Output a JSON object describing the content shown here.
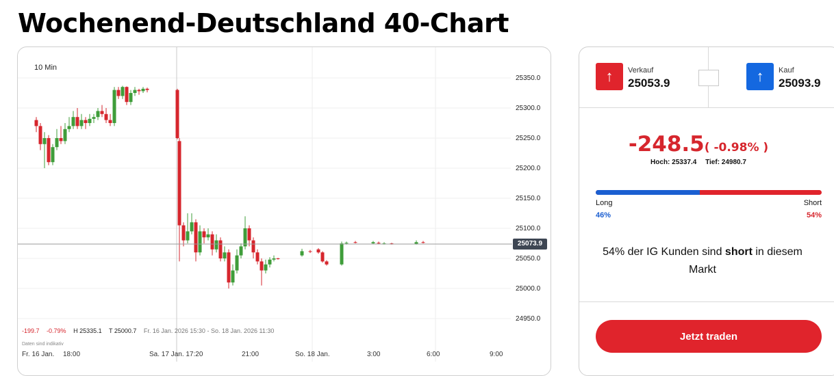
{
  "page": {
    "title": "Wochenend-Deutschland 40-Chart"
  },
  "chart": {
    "timeframe": "10 Min",
    "info": {
      "change": "-199.7",
      "change_pct": "-0.79%",
      "high": "H 25335.1",
      "low": "T 25000.7",
      "range": "Fr. 16 Jan. 2026 15:30 - So. 18 Jan. 2026 11:30"
    },
    "disclaimer": "Daten sind indikativ",
    "current_price_tag": "25073.9",
    "colors": {
      "up": "#3f9d3a",
      "down": "#d6262d"
    }
  },
  "chart_data": {
    "type": "candlestick",
    "y_ticks": [
      "25350.0",
      "25300.0",
      "25250.0",
      "25200.0",
      "25150.0",
      "25100.0",
      "25050.0",
      "25000.0",
      "24950.0"
    ],
    "ylim": [
      24930,
      25390
    ],
    "x_ticks": [
      "Fr. 16 Jan.",
      "18:00",
      "Sa. 17 Jan. 17:20",
      "21:00",
      "So. 18 Jan.",
      "3:00",
      "6:00",
      "9:00"
    ],
    "current_price": 25073.9,
    "candles": [
      [
        25280,
        25270,
        25285,
        25260
      ],
      [
        25270,
        25240,
        25275,
        25230
      ],
      [
        25240,
        25250,
        25260,
        25200
      ],
      [
        25250,
        25210,
        25255,
        25205
      ],
      [
        25210,
        25235,
        25240,
        25205
      ],
      [
        25235,
        25250,
        25265,
        25230
      ],
      [
        25250,
        25245,
        25270,
        25240
      ],
      [
        25245,
        25265,
        25275,
        25240
      ],
      [
        25265,
        25270,
        25285,
        25260
      ],
      [
        25270,
        25285,
        25295,
        25265
      ],
      [
        25285,
        25270,
        25300,
        25265
      ],
      [
        25270,
        25280,
        25290,
        25265
      ],
      [
        25280,
        25275,
        25285,
        25265
      ],
      [
        25275,
        25282,
        25290,
        25270
      ],
      [
        25282,
        25285,
        25290,
        25275
      ],
      [
        25285,
        25295,
        25300,
        25280
      ],
      [
        25295,
        25290,
        25305,
        25285
      ],
      [
        25290,
        25280,
        25300,
        25275
      ],
      [
        25280,
        25275,
        25290,
        25270
      ],
      [
        25275,
        25330,
        25335,
        25270
      ],
      [
        25330,
        25320,
        25335,
        25315
      ],
      [
        25320,
        25335,
        25337,
        25315
      ],
      [
        25335,
        25310,
        25336,
        25305
      ],
      [
        25310,
        25325,
        25330,
        25305
      ],
      [
        25325,
        25330,
        25335,
        25320
      ],
      [
        25330,
        25328,
        25332,
        25322
      ],
      [
        25328,
        25332,
        25335,
        25325
      ],
      [
        25332,
        25330,
        25334,
        25326
      ],
      [
        25330,
        25250,
        25332,
        25248
      ],
      [
        25245,
        25105,
        25250,
        25045
      ],
      [
        25105,
        25080,
        25110,
        25070
      ],
      [
        25080,
        25095,
        25125,
        25075
      ],
      [
        25095,
        25110,
        25125,
        25090
      ],
      [
        25110,
        25060,
        25115,
        25045
      ],
      [
        25060,
        25095,
        25105,
        25055
      ],
      [
        25095,
        25085,
        25100,
        25075
      ],
      [
        25085,
        25090,
        25100,
        25080
      ],
      [
        25090,
        25065,
        25095,
        25055
      ],
      [
        25065,
        25080,
        25090,
        25060
      ],
      [
        25080,
        25050,
        25085,
        25045
      ],
      [
        25050,
        25060,
        25070,
        25045
      ],
      [
        25060,
        25010,
        25065,
        25000
      ],
      [
        25010,
        25030,
        25040,
        25005
      ],
      [
        25030,
        25055,
        25065,
        25025
      ],
      [
        25055,
        25070,
        25075,
        25050
      ],
      [
        25070,
        25100,
        25120,
        25065
      ],
      [
        25100,
        25080,
        25105,
        25070
      ],
      [
        25080,
        25060,
        25085,
        25050
      ],
      [
        25060,
        25045,
        25065,
        25040
      ],
      [
        25045,
        25030,
        25050,
        25005
      ],
      [
        25030,
        25040,
        25048,
        25025
      ],
      [
        25040,
        25048,
        25052,
        25035
      ],
      [
        25048,
        25050,
        25055,
        25045
      ],
      [
        25050,
        25049,
        25051,
        25048
      ],
      [
        25055,
        25062,
        25066,
        25053
      ],
      [
        25062,
        25061,
        25064,
        25059
      ],
      [
        25065,
        25060,
        25067,
        25058
      ],
      [
        25060,
        25045,
        25062,
        25043
      ],
      [
        25045,
        25040,
        25047,
        25038
      ],
      [
        25040,
        25075,
        25078,
        25038
      ],
      [
        25075,
        25076,
        25078,
        25073
      ],
      [
        25077,
        25076,
        25079,
        25075
      ],
      [
        25075,
        25077,
        25079,
        25074
      ],
      [
        25076,
        25075,
        25078,
        25074
      ],
      [
        25074,
        25075,
        25077,
        25073
      ],
      [
        25075,
        25074,
        25076,
        25073
      ],
      [
        25074,
        25077,
        25080,
        25073
      ],
      [
        25077,
        25076,
        25079,
        25075
      ]
    ],
    "candle_x": [
      27,
      33,
      39,
      45,
      51,
      57,
      63,
      69,
      75,
      81,
      87,
      93,
      99,
      105,
      111,
      117,
      123,
      129,
      135,
      141,
      147,
      153,
      159,
      165,
      171,
      177,
      183,
      189,
      233,
      236,
      242,
      248,
      254,
      260,
      266,
      272,
      278,
      284,
      290,
      296,
      302,
      308,
      314,
      320,
      326,
      332,
      338,
      344,
      350,
      356,
      362,
      368,
      374,
      380,
      415,
      427,
      439,
      445,
      451,
      473,
      480,
      493,
      519,
      527,
      535,
      546,
      582,
      592
    ],
    "candle_x_ref_width": 778
  },
  "trade": {
    "sell_label": "Verkauf",
    "sell_price": "25053.9",
    "buy_label": "Kauf",
    "buy_price": "25093.9",
    "change_value": "-248.5",
    "change_pct": "( -0.98% )",
    "high": "Hoch: 25337.4",
    "low": "Tief: 24980.7",
    "long_label": "Long",
    "long_pct": "46%",
    "long_value": 46,
    "short_label": "Short",
    "short_pct": "54%",
    "sentiment_prefix": "54% der IG Kunden sind ",
    "sentiment_bold": "short",
    "sentiment_suffix": " in diesem Markt",
    "trade_button": "Jetzt traden",
    "colors": {
      "red": "#e0242c",
      "blue": "#1468e0",
      "long_blue": "#1b5fd1"
    }
  },
  "icons": {
    "sell_arrow": "arrow-up-icon",
    "buy_arrow": "arrow-up-icon"
  }
}
